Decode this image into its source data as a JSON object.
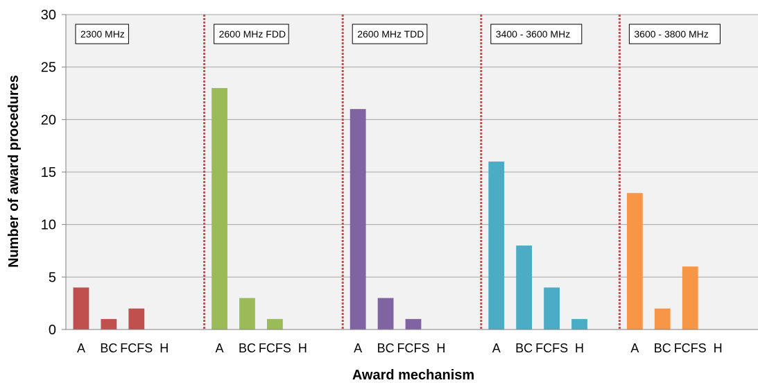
{
  "chart_data": {
    "type": "bar",
    "title": "",
    "xlabel": "Award mechanism",
    "ylabel": "Number of award procedures",
    "ylim": [
      0,
      30
    ],
    "yticks": [
      0,
      5,
      10,
      15,
      20,
      25,
      30
    ],
    "grid": true,
    "categories": [
      "A",
      "BC",
      "FCFS",
      "H"
    ],
    "groups": [
      {
        "label": "2300 MHz",
        "color": "#c0504d",
        "values": [
          4,
          1,
          2,
          0
        ]
      },
      {
        "label": "2600 MHz FDD",
        "color": "#9bbb59",
        "values": [
          23,
          3,
          1,
          0
        ]
      },
      {
        "label": "2600 MHz TDD",
        "color": "#8064a2",
        "values": [
          21,
          3,
          1,
          0
        ]
      },
      {
        "label": "3400 - 3600 MHz",
        "color": "#4bacc6",
        "values": [
          16,
          8,
          4,
          1
        ]
      },
      {
        "label": "3600 - 3800 MHz",
        "color": "#f79646",
        "values": [
          13,
          2,
          6,
          0
        ]
      }
    ],
    "separator_color": "#c0504d",
    "plot_background": "#f2f2f2"
  }
}
